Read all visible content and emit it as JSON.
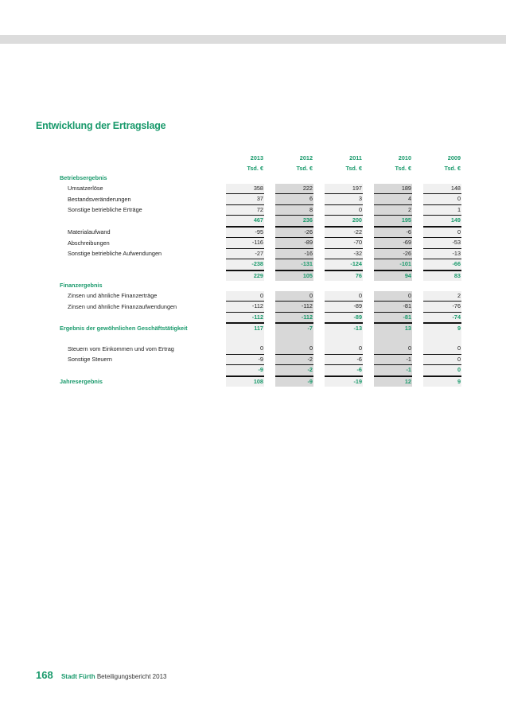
{
  "title": "Entwicklung der Ertragslage",
  "years": [
    "2013",
    "2012",
    "2011",
    "2010",
    "2009"
  ],
  "unit": "Tsd. €",
  "rows": [
    {
      "label": "Betriebsergebnis",
      "type": "sec",
      "values": [
        "",
        "",
        "",
        "",
        ""
      ]
    },
    {
      "label": "Umsatzerlöse",
      "type": "item",
      "values": [
        "358",
        "222",
        "197",
        "189",
        "148"
      ]
    },
    {
      "label": "Bestandsveränderungen",
      "type": "item",
      "values": [
        "37",
        "6",
        "3",
        "4",
        "0"
      ]
    },
    {
      "label": "Sonstige betriebliche Erträge",
      "type": "item",
      "values": [
        "72",
        "8",
        "0",
        "2",
        "1"
      ]
    },
    {
      "label": "",
      "type": "sum",
      "values": [
        "467",
        "236",
        "200",
        "195",
        "149"
      ]
    },
    {
      "label": "Materialaufwand",
      "type": "item",
      "values": [
        "-95",
        "-26",
        "-22",
        "-6",
        "0"
      ]
    },
    {
      "label": "Abschreibungen",
      "type": "item",
      "values": [
        "-116",
        "-89",
        "-70",
        "-69",
        "-53"
      ]
    },
    {
      "label": "Sonstige betriebliche Aufwendungen",
      "type": "item",
      "values": [
        "-27",
        "-16",
        "-32",
        "-26",
        "-13"
      ]
    },
    {
      "label": "",
      "type": "sum",
      "values": [
        "-238",
        "-131",
        "-124",
        "-101",
        "-66"
      ]
    },
    {
      "label": "",
      "type": "tot",
      "values": [
        "229",
        "105",
        "76",
        "94",
        "83"
      ]
    },
    {
      "label": "Finanzergebnis",
      "type": "sec",
      "values": [
        "",
        "",
        "",
        "",
        ""
      ]
    },
    {
      "label": "Zinsen und ähnliche Finanzerträge",
      "type": "item",
      "values": [
        "0",
        "0",
        "0",
        "0",
        "2"
      ]
    },
    {
      "label": "Zinsen und ähnliche Finanzaufwendungen",
      "type": "item",
      "values": [
        "-112",
        "-112",
        "-89",
        "-81",
        "-76"
      ]
    },
    {
      "label": "",
      "type": "sum",
      "values": [
        "-112",
        "-112",
        "-89",
        "-81",
        "-74"
      ]
    },
    {
      "label": "Ergebnis der gewöhnlichen Geschäftstätigkeit",
      "type": "tot",
      "values": [
        "117",
        "-7",
        "-13",
        "13",
        "9"
      ]
    },
    {
      "label": "",
      "type": "blank",
      "values": [
        "",
        "",
        "",
        "",
        ""
      ]
    },
    {
      "label": "Steuern vom Einkommen und vom Ertrag",
      "type": "item",
      "values": [
        "0",
        "0",
        "0",
        "0",
        "0"
      ]
    },
    {
      "label": "Sonstige Steuern",
      "type": "item",
      "values": [
        "-9",
        "-2",
        "-6",
        "-1",
        "0"
      ]
    },
    {
      "label": "",
      "type": "sum",
      "values": [
        "-9",
        "-2",
        "-6",
        "-1",
        "0"
      ]
    },
    {
      "label": "Jahresergebnis",
      "type": "tot",
      "values": [
        "108",
        "-9",
        "-19",
        "12",
        "9"
      ]
    }
  ],
  "footer": {
    "page": "168",
    "brand": "Stadt Fürth",
    "text": "Beteiligungsbericht 2013"
  },
  "colors": {
    "accent": "#1a9a6c",
    "shade_light": "#f0f0f0",
    "shade_dark": "#d8d8d8"
  }
}
